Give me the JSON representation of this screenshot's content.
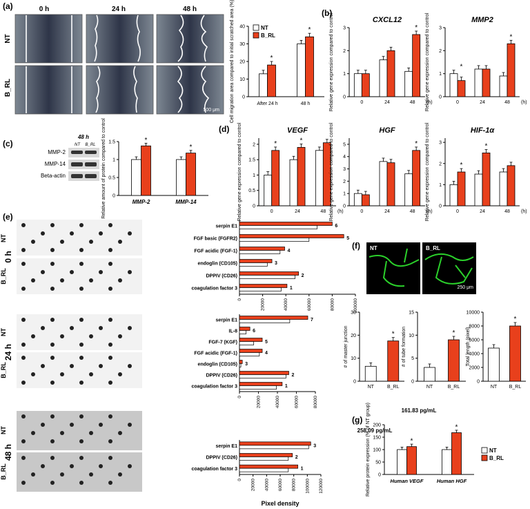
{
  "colors": {
    "nt": "#ffffff",
    "b_rl": "#e8401c",
    "axis": "#000000",
    "blot_bg": "#d9d9d9",
    "array_bg": "#f2f2f2",
    "green": "#2bd12b"
  },
  "panels": {
    "a": {
      "label": "(a)",
      "time_labels": [
        "0 h",
        "24 h",
        "48 h"
      ],
      "row_labels": [
        "NT",
        "B_RL"
      ],
      "scale_bar": "500 μm"
    },
    "c": {
      "label": "(c)",
      "blot_title": "48 h",
      "blot_lanes": [
        "NT",
        "B_RL"
      ],
      "blot_rows": [
        "MMP-2",
        "MMP-14",
        "Beta-actin"
      ]
    },
    "e": {
      "label": "(e)",
      "time_labels": [
        "0 h",
        "24 h",
        "48 h"
      ],
      "row_labels": [
        "NT",
        "B_RL"
      ]
    },
    "f": {
      "label": "(f)",
      "image_labels": [
        "NT",
        "B_RL"
      ],
      "scale_bar": "250 μm"
    },
    "b": {
      "label": "(b)"
    },
    "d": {
      "label": "(d)"
    },
    "g": {
      "label": "(g)",
      "annot_vegf": "258.09 pg/mL",
      "annot_hgf": "161.83 pg/mL"
    }
  },
  "chart_data": [
    {
      "id": "a_migration",
      "type": "bar",
      "categories": [
        "After 24 h",
        "48 h"
      ],
      "series": [
        {
          "name": "NT",
          "values": [
            13,
            30
          ]
        },
        {
          "name": "B_RL",
          "values": [
            18,
            34
          ]
        }
      ],
      "ylabel": "Cell migration area compared to initial scratched area (%)",
      "ylim": [
        0,
        40
      ],
      "yticks": [
        0,
        10,
        20,
        30,
        40
      ],
      "significance": [
        "*",
        "*"
      ],
      "legend": "top-left"
    },
    {
      "id": "b_cxcl12",
      "type": "bar",
      "title": "CXCL12",
      "categories": [
        "0",
        "24",
        "48"
      ],
      "x_unit": "(h)",
      "series": [
        {
          "name": "NT",
          "values": [
            1.0,
            1.6,
            1.1
          ]
        },
        {
          "name": "B_RL",
          "values": [
            1.0,
            2.0,
            2.7
          ]
        }
      ],
      "ylabel": "Relative gene expression compared to control",
      "ylim": [
        0,
        3
      ],
      "yticks": [
        0,
        1,
        2,
        3
      ],
      "significance": [
        "",
        "",
        "*"
      ]
    },
    {
      "id": "b_mmp2",
      "type": "bar",
      "title": "MMP2",
      "categories": [
        "0",
        "24",
        "48"
      ],
      "x_unit": "(h)",
      "series": [
        {
          "name": "NT",
          "values": [
            1.0,
            1.2,
            0.9
          ]
        },
        {
          "name": "B_RL",
          "values": [
            0.7,
            1.2,
            2.3
          ]
        }
      ],
      "ylabel": "Relative gene expression compared to control",
      "ylim": [
        0,
        3
      ],
      "yticks": [
        0,
        1,
        2,
        3
      ],
      "significance": [
        "*",
        "",
        "*"
      ]
    },
    {
      "id": "c_protein",
      "type": "bar",
      "categories": [
        "MMP-2",
        "MMP-14"
      ],
      "series": [
        {
          "name": "NT",
          "values": [
            1.0,
            1.0
          ]
        },
        {
          "name": "B_RL",
          "values": [
            1.38,
            1.18
          ]
        }
      ],
      "ylabel": "Relative amount of protein compared to control",
      "ylim": [
        0,
        1.5
      ],
      "yticks": [
        0,
        0.5,
        1.0,
        1.5
      ],
      "significance": [
        "*",
        "*"
      ]
    },
    {
      "id": "d_vegf",
      "type": "bar",
      "title": "VEGF",
      "categories": [
        "0",
        "24",
        "48"
      ],
      "x_unit": "(h)",
      "series": [
        {
          "name": "NT",
          "values": [
            1.0,
            1.5,
            1.8
          ]
        },
        {
          "name": "B_RL",
          "values": [
            1.8,
            1.9,
            2.05
          ]
        }
      ],
      "ylabel": "Relative gene expression compared to control",
      "ylim": [
        0,
        2.2
      ],
      "yticks": [
        0,
        0.5,
        1.0,
        1.5,
        2.0
      ],
      "significance": [
        "*",
        "*",
        ""
      ]
    },
    {
      "id": "d_hgf",
      "type": "bar",
      "title": "HGF",
      "categories": [
        "0",
        "24",
        "48"
      ],
      "x_unit": "(h)",
      "series": [
        {
          "name": "NT",
          "values": [
            1.0,
            3.6,
            2.6
          ]
        },
        {
          "name": "B_RL",
          "values": [
            0.9,
            3.5,
            4.5
          ]
        }
      ],
      "ylabel": "Relative gene expression compared to control",
      "ylim": [
        0,
        5.5
      ],
      "yticks": [
        0,
        1,
        2,
        3,
        4,
        5
      ],
      "significance": [
        "",
        "",
        "*"
      ]
    },
    {
      "id": "d_hif1a",
      "type": "bar",
      "title": "HIF-1α",
      "categories": [
        "0",
        "24",
        "48"
      ],
      "x_unit": "(h)",
      "series": [
        {
          "name": "NT",
          "values": [
            1.0,
            1.5,
            1.6
          ]
        },
        {
          "name": "B_RL",
          "values": [
            1.6,
            2.5,
            1.9
          ]
        }
      ],
      "ylabel": "Relative gene expression compared to control",
      "ylim": [
        0,
        3.2
      ],
      "yticks": [
        0,
        1,
        2,
        3
      ],
      "significance": [
        "*",
        "*",
        ""
      ]
    },
    {
      "id": "e_0h",
      "type": "bar",
      "orientation": "horizontal",
      "categories": [
        "serpin E1",
        "FGF basic (FGFR2)",
        "FGF acidic (FGF-1)",
        "endoglin (CD105)",
        "DPPIV (CD26)",
        "coagulation factor 3"
      ],
      "numbers": [
        "6",
        "5",
        "4",
        "3",
        "2",
        "1"
      ],
      "series": [
        {
          "name": "NT",
          "values": [
            67000,
            60000,
            35000,
            24000,
            48000,
            36000
          ]
        },
        {
          "name": "B_RL",
          "values": [
            80000,
            90000,
            39000,
            28000,
            51000,
            41000
          ]
        }
      ],
      "xlim": [
        0,
        100000
      ],
      "xticks": [
        0,
        20000,
        40000,
        60000,
        80000,
        100000
      ]
    },
    {
      "id": "e_24h",
      "type": "bar",
      "orientation": "horizontal",
      "categories": [
        "serpin E1",
        "IL-8",
        "FGF-7 (KGF)",
        "FGF acidic (FGF-1)",
        "endoglin (CD105)",
        "DPPIV (CD26)",
        "coagulation factor 3"
      ],
      "numbers": [
        "7",
        "6",
        "5",
        "4",
        "3",
        "2",
        "1"
      ],
      "series": [
        {
          "name": "NT",
          "values": [
            53000,
            7000,
            15000,
            21000,
            1500,
            49000,
            39000
          ]
        },
        {
          "name": "B_RL",
          "values": [
            72000,
            11000,
            24000,
            24000,
            3000,
            52000,
            45000
          ]
        }
      ],
      "xlim": [
        0,
        80000
      ],
      "xticks": [
        0,
        20000,
        40000,
        60000,
        80000
      ]
    },
    {
      "id": "e_48h",
      "type": "bar",
      "orientation": "horizontal",
      "categories": [
        "serpin E1",
        "DPPIV (CD26)",
        "coagulation factor 3"
      ],
      "numbers": [
        "3",
        "2",
        "1"
      ],
      "series": [
        {
          "name": "NT",
          "values": [
            102000,
            72000,
            72000
          ]
        },
        {
          "name": "B_RL",
          "values": [
            105000,
            78000,
            86000
          ]
        }
      ],
      "xlim": [
        0,
        120000
      ],
      "xticks": [
        0,
        20000,
        40000,
        60000,
        80000,
        100000,
        120000
      ],
      "xlabel": "Pixel density"
    },
    {
      "id": "f_junction",
      "type": "bar",
      "categories": [
        "NT",
        "B_RL"
      ],
      "colors_by_cat": true,
      "values": [
        6.5,
        17.5
      ],
      "ylabel": "# of master junction",
      "ylim": [
        0,
        30
      ],
      "yticks": [
        0,
        10,
        20,
        30
      ],
      "significance": [
        "",
        "*"
      ]
    },
    {
      "id": "f_tube",
      "type": "bar",
      "categories": [
        "NT",
        "B_RL"
      ],
      "colors_by_cat": true,
      "values": [
        3.0,
        9.0
      ],
      "ylabel": "# of tube formation",
      "ylim": [
        0,
        15
      ],
      "yticks": [
        0,
        5,
        10,
        15
      ],
      "significance": [
        "",
        "*"
      ]
    },
    {
      "id": "f_length",
      "type": "bar",
      "categories": [
        "NT",
        "B_RL"
      ],
      "colors_by_cat": true,
      "values": [
        4800,
        8000
      ],
      "ylabel": "Total length (pixel)",
      "ylim": [
        0,
        10000
      ],
      "yticks": [
        0,
        2000,
        4000,
        6000,
        8000,
        10000
      ],
      "significance": [
        "",
        "*"
      ]
    },
    {
      "id": "g_protein",
      "type": "bar",
      "categories": [
        "Human VEGF",
        "Human HGF"
      ],
      "series": [
        {
          "name": "NT",
          "values": [
            100,
            100
          ]
        },
        {
          "name": "B_RL",
          "values": [
            112,
            168
          ]
        }
      ],
      "ylabel": "Relative protein expression (% of NT group)",
      "ylim": [
        0,
        200
      ],
      "yticks": [
        0,
        50,
        100,
        150,
        200
      ],
      "significance": [
        "*",
        "*"
      ],
      "legend": "right"
    }
  ]
}
